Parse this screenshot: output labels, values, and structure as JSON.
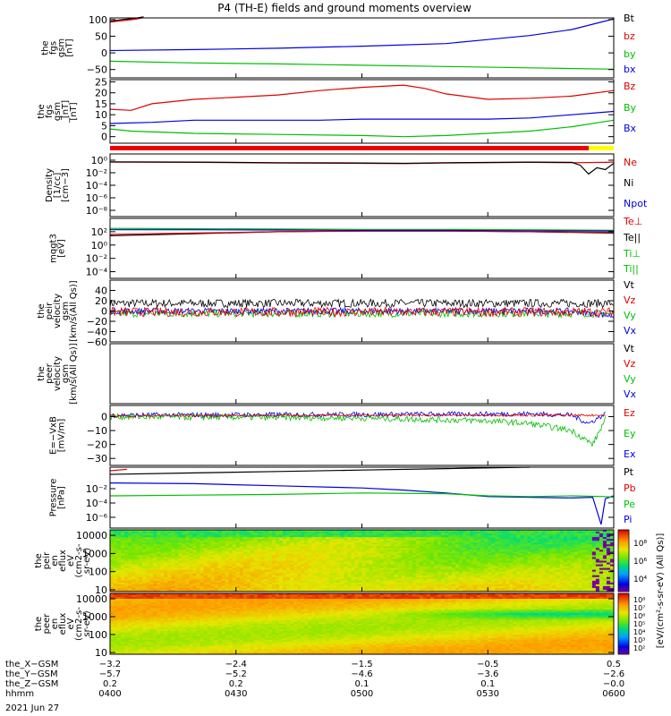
{
  "title": "P4 (TH-E) fields and ground moments overview",
  "date": "2021 Jun 27",
  "chart_data": [
    {
      "type": "line",
      "ylabel": [
        "the",
        "fgs",
        "gsm",
        "[nT]"
      ],
      "ylim": [
        -75,
        105
      ],
      "yticks": [
        {
          "v": 100,
          "t": "100"
        },
        {
          "v": 50,
          "t": "50"
        },
        {
          "v": 0,
          "t": "0"
        },
        {
          "v": -50,
          "t": "−50"
        }
      ],
      "legend": [
        {
          "text": "Bt",
          "color": "#000000"
        },
        {
          "text": "bz",
          "color": "#e00000"
        },
        {
          "text": "by",
          "color": "#00c000"
        },
        {
          "text": "bx",
          "color": "#0000e0"
        }
      ],
      "series": [
        {
          "color": "#000000",
          "x": [
            0,
            3,
            6,
            8
          ],
          "y": [
            95,
            100,
            104,
            108
          ]
        },
        {
          "color": "#e00000",
          "x": [
            0,
            3,
            6,
            8
          ],
          "y": [
            92,
            97,
            101,
            106
          ]
        },
        {
          "color": "#0000e0",
          "x": [
            0,
            20,
            40,
            60,
            80,
            90,
            100,
            110,
            120
          ],
          "y": [
            7,
            10,
            14,
            20,
            28,
            40,
            52,
            70,
            102
          ]
        },
        {
          "color": "#00c000",
          "x": [
            0,
            20,
            40,
            60,
            80,
            100,
            120,
            140,
            150,
            160,
            170,
            175,
            180
          ],
          "y": [
            -25,
            -30,
            -33,
            -37,
            -41,
            -45,
            -49,
            -54,
            -57,
            -61,
            -64,
            -65,
            -59
          ]
        }
      ]
    },
    {
      "type": "line",
      "ylabel": [
        "the",
        "fgs",
        "gsm",
        "_[nT]",
        "[nT]"
      ],
      "ylim": [
        -3,
        26
      ],
      "yticks": [
        {
          "v": 25,
          "t": "25"
        },
        {
          "v": 20,
          "t": "20"
        },
        {
          "v": 15,
          "t": "15"
        },
        {
          "v": 10,
          "t": "10"
        },
        {
          "v": 5,
          "t": "5"
        },
        {
          "v": 0,
          "t": "0"
        }
      ],
      "legend": [
        {
          "text": "Bz",
          "color": "#e00000"
        },
        {
          "text": "By",
          "color": "#00c000"
        },
        {
          "text": "Bx",
          "color": "#0000e0"
        }
      ],
      "series": [
        {
          "color": "#e00000",
          "x": [
            0,
            5,
            10,
            20,
            30,
            40,
            50,
            60,
            70,
            75,
            80,
            90,
            100,
            110,
            120
          ],
          "y": [
            12.5,
            12,
            15,
            17,
            18,
            19,
            21,
            22.5,
            23.5,
            22,
            19.5,
            17,
            17.5,
            18.5,
            21
          ]
        },
        {
          "color": "#0000e0",
          "x": [
            0,
            10,
            20,
            30,
            40,
            50,
            60,
            70,
            80,
            90,
            100,
            110,
            120
          ],
          "y": [
            6,
            6.5,
            7.5,
            7.5,
            7.5,
            7.5,
            8,
            8,
            8,
            8,
            8.5,
            10,
            11.5
          ]
        },
        {
          "color": "#00c000",
          "x": [
            0,
            5,
            20,
            40,
            60,
            70,
            80,
            90,
            100,
            110,
            120
          ],
          "y": [
            3.5,
            2.5,
            1.5,
            1,
            0.5,
            0,
            0.5,
            1.5,
            2.5,
            4.5,
            7.5
          ]
        }
      ]
    },
    {
      "type": "line",
      "log": true,
      "ylabel": [
        "Density",
        "[1/cc]",
        "[cm−3]"
      ],
      "ylim": [
        -9,
        1
      ],
      "yticks": [
        {
          "v": 0,
          "t": "10⁰"
        },
        {
          "v": -2,
          "t": "10⁻²"
        },
        {
          "v": -4,
          "t": "10⁻⁴"
        },
        {
          "v": -6,
          "t": "10⁻⁶"
        },
        {
          "v": -8,
          "t": "10⁻⁸"
        }
      ],
      "legend": [
        {
          "text": "Ne",
          "color": "#e00000"
        },
        {
          "text": "Ni",
          "color": "#000000"
        },
        {
          "text": "Npot",
          "color": "#0000e0"
        }
      ],
      "series": [
        {
          "color": "#e00000",
          "x": [
            0,
            20,
            40,
            60,
            70,
            80,
            100,
            110,
            118,
            120
          ],
          "y": [
            -0.3,
            -0.35,
            -0.45,
            -0.5,
            -0.55,
            -0.45,
            -0.35,
            -0.4,
            -0.35,
            -0.3
          ]
        },
        {
          "color": "#000000",
          "x": [
            0,
            20,
            40,
            60,
            70,
            80,
            100,
            110,
            112,
            114,
            116,
            118,
            120
          ],
          "y": [
            -0.25,
            -0.3,
            -0.4,
            -0.45,
            -0.5,
            -0.4,
            -0.3,
            -0.35,
            -0.8,
            -2.2,
            -1.2,
            -1.5,
            -0.5
          ]
        }
      ]
    },
    {
      "type": "line",
      "log": true,
      "ylabel": [
        "mqgt3",
        "[eV]"
      ],
      "ylim": [
        -5,
        4
      ],
      "yticks": [
        {
          "v": 2,
          "t": "10²"
        },
        {
          "v": 0,
          "t": "10⁰"
        },
        {
          "v": -2,
          "t": "10⁻²"
        },
        {
          "v": -4,
          "t": "10⁻⁴"
        }
      ],
      "legend": [
        {
          "text": "Te⊥",
          "color": "#e00000"
        },
        {
          "text": "Te||",
          "color": "#000000"
        },
        {
          "text": "Ti⊥",
          "color": "#00c000"
        },
        {
          "text": "Ti||",
          "color": "#00c000"
        }
      ],
      "series": [
        {
          "color": "#000000",
          "x": [
            0,
            20,
            40,
            60,
            80,
            100,
            120
          ],
          "y": [
            1.4,
            1.7,
            2.0,
            2.1,
            2.1,
            2.0,
            1.8
          ]
        },
        {
          "color": "#e00000",
          "x": [
            0,
            20,
            40,
            60,
            80,
            100,
            120
          ],
          "y": [
            1.6,
            1.8,
            2.0,
            2.1,
            2.1,
            2.0,
            1.9
          ]
        },
        {
          "color": "#00c000",
          "x": [
            0,
            20,
            40,
            60,
            80,
            100,
            120
          ],
          "y": [
            2.5,
            2.45,
            2.4,
            2.35,
            2.35,
            2.3,
            2.2
          ]
        },
        {
          "color": "#0000e0",
          "x": [
            0,
            20,
            40,
            60,
            80,
            100,
            120
          ],
          "y": [
            2.3,
            2.3,
            2.25,
            2.2,
            2.2,
            2.15,
            2.1
          ]
        }
      ]
    },
    {
      "type": "line",
      "noise": true,
      "ylabel": [
        "the",
        "peir",
        "velocity",
        "gsm",
        "[km/s(All Qs)]"
      ],
      "ylim": [
        -60,
        60
      ],
      "yticks": [
        {
          "v": 40,
          "t": "40"
        },
        {
          "v": 20,
          "t": "20"
        },
        {
          "v": 0,
          "t": "0"
        },
        {
          "v": -20,
          "t": "−20"
        },
        {
          "v": -40,
          "t": "−40"
        },
        {
          "v": -60,
          "t": "−60"
        }
      ],
      "legend": [
        {
          "text": "Vt",
          "color": "#000000"
        },
        {
          "text": "Vz",
          "color": "#e00000"
        },
        {
          "text": "Vy",
          "color": "#00c000"
        },
        {
          "text": "Vx",
          "color": "#0000e0"
        }
      ],
      "series": [
        {
          "color": "#000000",
          "x": [
            0,
            120
          ],
          "y": [
            15,
            15
          ],
          "amp": 8
        },
        {
          "color": "#00c000",
          "x": [
            0,
            120
          ],
          "y": [
            -5,
            -5
          ],
          "amp": 7
        },
        {
          "color": "#0000e0",
          "x": [
            0,
            110,
            120
          ],
          "y": [
            0,
            0,
            -10
          ],
          "amp": 6
        },
        {
          "color": "#e00000",
          "x": [
            0,
            120
          ],
          "y": [
            -2,
            -2
          ],
          "amp": 9
        }
      ]
    },
    {
      "type": "line",
      "ylabel": [
        "the",
        "peer",
        "velocity",
        "gsm",
        "[km/s(All Qs)]"
      ],
      "ylim": [
        0,
        1
      ],
      "yticks": [],
      "legend": [
        {
          "text": "Vt",
          "color": "#000000"
        },
        {
          "text": "Vz",
          "color": "#e00000"
        },
        {
          "text": "Vy",
          "color": "#00c000"
        },
        {
          "text": "Vx",
          "color": "#0000e0"
        }
      ],
      "series": []
    },
    {
      "type": "line",
      "noise": true,
      "ylabel": [
        "E=−VxB",
        "[mV/m]"
      ],
      "ylim": [
        -35,
        8
      ],
      "yticks": [
        {
          "v": 0,
          "t": "0"
        },
        {
          "v": -10,
          "t": "−10"
        },
        {
          "v": -20,
          "t": "−20"
        },
        {
          "v": -30,
          "t": "−30"
        }
      ],
      "legend": [
        {
          "text": "Ez",
          "color": "#e00000"
        },
        {
          "text": "Ey",
          "color": "#00c000"
        },
        {
          "text": "Ex",
          "color": "#0000e0"
        }
      ],
      "series": [
        {
          "color": "#0000e0",
          "x": [
            0,
            60,
            100,
            110,
            114,
            118
          ],
          "y": [
            1,
            1.5,
            2,
            1,
            -5,
            2
          ],
          "amp": 1.8
        },
        {
          "color": "#00c000",
          "x": [
            0,
            60,
            90,
            100,
            110,
            115,
            118
          ],
          "y": [
            0,
            -1,
            -3,
            -5,
            -10,
            -20,
            -2
          ],
          "amp": 2.2
        },
        {
          "color": "#e00000",
          "x": [
            0,
            60,
            100,
            118
          ],
          "y": [
            0.5,
            1,
            1,
            1
          ],
          "amp": 0.8
        }
      ]
    },
    {
      "type": "line",
      "log": true,
      "ylabel": [
        "Pressure",
        "[nPa]"
      ],
      "ylim": [
        -7.5,
        1
      ],
      "yticks": [
        {
          "v": -2,
          "t": "10⁻²"
        },
        {
          "v": -4,
          "t": "10⁻⁴"
        },
        {
          "v": -6,
          "t": "10⁻⁶"
        }
      ],
      "legend": [
        {
          "text": "Pt",
          "color": "#000000"
        },
        {
          "text": "Pb",
          "color": "#e00000"
        },
        {
          "text": "Pe",
          "color": "#00c000"
        },
        {
          "text": "Pi",
          "color": "#0000e0"
        }
      ],
      "series": [
        {
          "color": "#000000",
          "x": [
            0,
            20,
            40,
            60,
            80,
            100
          ],
          "y": [
            0.0,
            0.2,
            0.4,
            0.6,
            0.8,
            1.0
          ]
        },
        {
          "color": "#e00000",
          "x": [
            0,
            2,
            4
          ],
          "y": [
            0.5,
            0.6,
            0.7
          ]
        },
        {
          "color": "#0000e0",
          "x": [
            0,
            20,
            40,
            60,
            70,
            80,
            90,
            100,
            110,
            115,
            117,
            118,
            120
          ],
          "y": [
            -1.2,
            -1.3,
            -1.6,
            -1.9,
            -2.2,
            -2.6,
            -3.1,
            -3.2,
            -3.3,
            -3.2,
            -7.0,
            -3.4,
            -3.0
          ]
        },
        {
          "color": "#00c000",
          "x": [
            0,
            20,
            40,
            60,
            80,
            90,
            100,
            110,
            118,
            120
          ],
          "y": [
            -3.0,
            -2.9,
            -2.8,
            -2.6,
            -2.7,
            -3.0,
            -3.1,
            -3.0,
            -3.1,
            -3.2
          ]
        }
      ]
    },
    {
      "type": "heatmap",
      "ylabel": [
        "the",
        "peir",
        "en",
        "eflux",
        "eV",
        "(cm2-s-",
        "sr-eV)"
      ],
      "ylim": [
        0.9,
        4.3
      ],
      "yticks": [
        {
          "v": 4,
          "t": "10000"
        },
        {
          "v": 3,
          "t": "1000"
        },
        {
          "v": 2,
          "t": "100"
        },
        {
          "v": 1,
          "t": "10"
        }
      ],
      "variant": "ion"
    },
    {
      "type": "heatmap",
      "ylabel": [
        "the",
        "peer",
        "en",
        "eflux",
        "eV",
        "(cm2-s-",
        "sr-eV)"
      ],
      "ylim": [
        0.9,
        4.3
      ],
      "yticks": [
        {
          "v": 4,
          "t": "10000"
        },
        {
          "v": 3,
          "t": "1000"
        },
        {
          "v": 2,
          "t": "100"
        },
        {
          "v": 1,
          "t": "10"
        }
      ],
      "variant": "electron"
    }
  ],
  "colorbar": {
    "label": "[eV/(cm²-s-sr-eV) (All Qs)]",
    "ticks_top": [
      "10⁸",
      "10⁶",
      "10⁴"
    ],
    "ticks_bottom": [
      "10⁸",
      "10⁷",
      "10⁶",
      "10⁵",
      "10⁴",
      "10³",
      "10²"
    ]
  },
  "xaxis": {
    "ticks": [
      0,
      30,
      60,
      90,
      120
    ],
    "rows": [
      {
        "label": "the_X−GSM",
        "values": [
          "−3.2",
          "−2.4",
          "−1.5",
          "−0.5",
          "0.5"
        ]
      },
      {
        "label": "the_Y−GSM",
        "values": [
          "−5.7",
          "−5.2",
          "−4.6",
          "−3.6",
          "−2.6"
        ]
      },
      {
        "label": "the_Z−GSM",
        "values": [
          "0.2",
          "0.2",
          "0.1",
          "0.1",
          "−0.0"
        ]
      },
      {
        "label": "hhmm",
        "values": [
          "0400",
          "0430",
          "0500",
          "0530",
          "0600"
        ]
      }
    ]
  }
}
